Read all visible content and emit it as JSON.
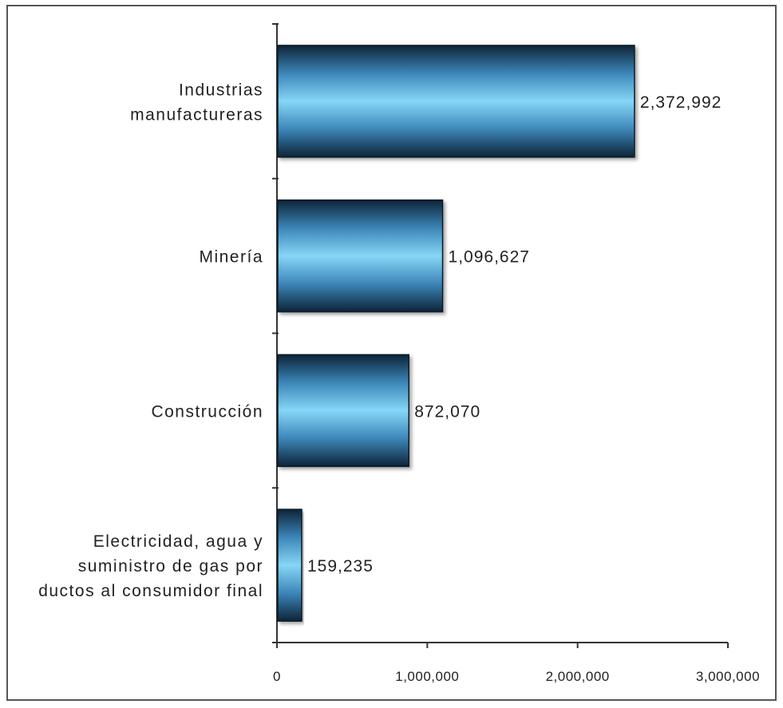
{
  "chart_data": {
    "type": "bar",
    "orientation": "horizontal",
    "categories": [
      [
        "Industrias",
        "manufactureras"
      ],
      [
        "Minería"
      ],
      [
        "Construcción"
      ],
      [
        "Electricidad, agua y",
        "suministro de gas por",
        "ductos al consumidor final"
      ]
    ],
    "values": [
      2372992,
      1096627,
      872070,
      159235
    ],
    "value_labels": [
      "2,372,992",
      "1,096,627",
      "872,070",
      "159,235"
    ],
    "x_ticks": [
      0,
      1000000,
      2000000,
      3000000
    ],
    "x_tick_labels": [
      "0",
      "1,000,000",
      "2,000,000",
      "3,000,000"
    ],
    "xlim": [
      0,
      3000000
    ],
    "title": "",
    "xlabel": "",
    "ylabel": "",
    "grid": false,
    "legend": "none",
    "colors": {
      "bar_edge": "#0d2438",
      "bar_center": "#86d6f7",
      "bar_mid": "#3c86b8",
      "axis": "#333333"
    }
  }
}
